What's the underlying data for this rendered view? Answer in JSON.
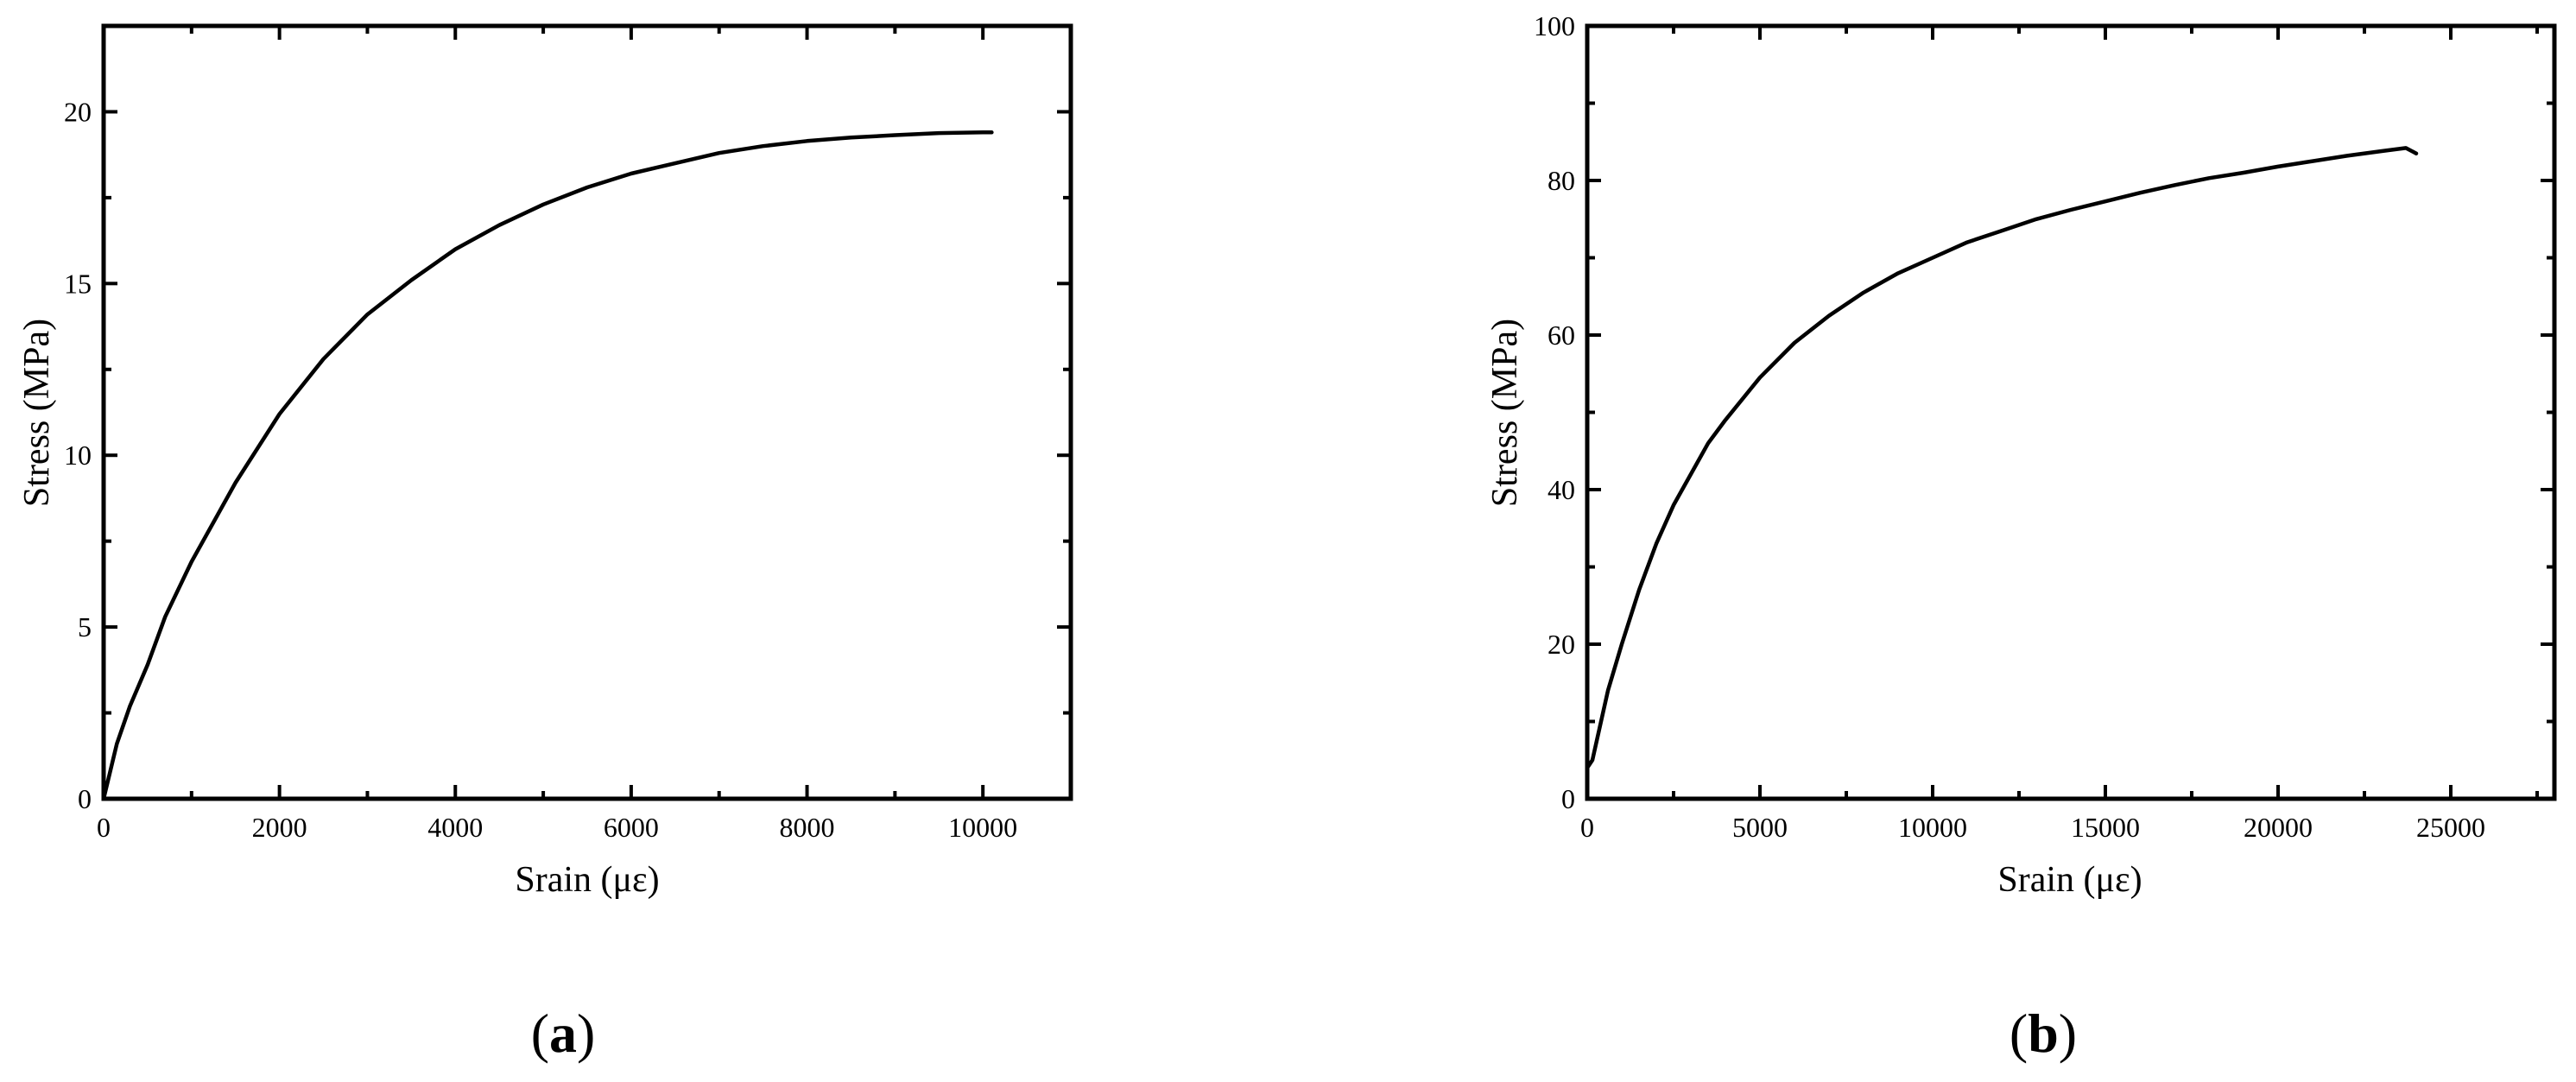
{
  "chart_data": [
    {
      "type": "line",
      "panel_label": {
        "open": "(",
        "letter": "a",
        "close": ")"
      },
      "title": "",
      "xlabel": "Srain (με)",
      "ylabel": "Stress (MPa)",
      "xlim": [
        0,
        11000
      ],
      "ylim": [
        0,
        22.5
      ],
      "xticks": [
        0,
        2000,
        4000,
        6000,
        8000,
        10000
      ],
      "xtick_labels": [
        "0",
        "2000",
        "4000",
        "6000",
        "8000",
        "10000"
      ],
      "yticks": [
        0,
        5,
        10,
        15,
        20
      ],
      "ytick_labels": [
        "0",
        "5",
        "10",
        "15",
        "20"
      ],
      "grid": false,
      "legend": "none",
      "line_color": "#000000",
      "series": [
        {
          "x": [
            0,
            150,
            300,
            500,
            700,
            1000,
            1500,
            2000,
            2500,
            3000,
            3500,
            4000,
            4500,
            5000,
            5500,
            6000,
            6500,
            7000,
            7500,
            8000,
            8500,
            9000,
            9500,
            10000,
            10100
          ],
          "y": [
            0,
            1.6,
            2.7,
            3.9,
            5.3,
            6.9,
            9.2,
            11.2,
            12.8,
            14.1,
            15.1,
            16.0,
            16.7,
            17.3,
            17.8,
            18.2,
            18.5,
            18.8,
            19.0,
            19.15,
            19.25,
            19.32,
            19.38,
            19.4,
            19.4
          ]
        }
      ]
    },
    {
      "type": "line",
      "panel_label": {
        "open": "(",
        "letter": "b",
        "close": ")"
      },
      "title": "",
      "xlabel": "Srain (με)",
      "ylabel": "Stress (MPa)",
      "xlim": [
        0,
        28000
      ],
      "ylim": [
        0,
        100
      ],
      "xticks": [
        0,
        5000,
        10000,
        15000,
        20000,
        25000
      ],
      "xtick_labels": [
        "0",
        "5000",
        "10000",
        "15000",
        "20000",
        "25000"
      ],
      "yticks": [
        0,
        20,
        40,
        60,
        80,
        100
      ],
      "ytick_labels": [
        "0",
        "20",
        "40",
        "60",
        "80",
        "100"
      ],
      "grid": false,
      "legend": "none",
      "line_color": "#000000",
      "series": [
        {
          "x": [
            0,
            150,
            300,
            600,
            1000,
            1500,
            2000,
            2500,
            3000,
            3500,
            4000,
            5000,
            6000,
            7000,
            8000,
            9000,
            10000,
            11000,
            12000,
            13000,
            14000,
            15000,
            16000,
            17000,
            18000,
            19000,
            20000,
            21000,
            22000,
            23000,
            23700,
            24000
          ],
          "y": [
            4,
            5,
            8,
            14,
            20,
            27,
            33,
            38,
            42,
            46,
            49,
            54.5,
            59,
            62.5,
            65.5,
            68,
            70,
            72,
            73.5,
            75,
            76.2,
            77.3,
            78.4,
            79.4,
            80.3,
            81,
            81.8,
            82.5,
            83.2,
            83.8,
            84.2,
            83.5
          ]
        }
      ]
    }
  ]
}
